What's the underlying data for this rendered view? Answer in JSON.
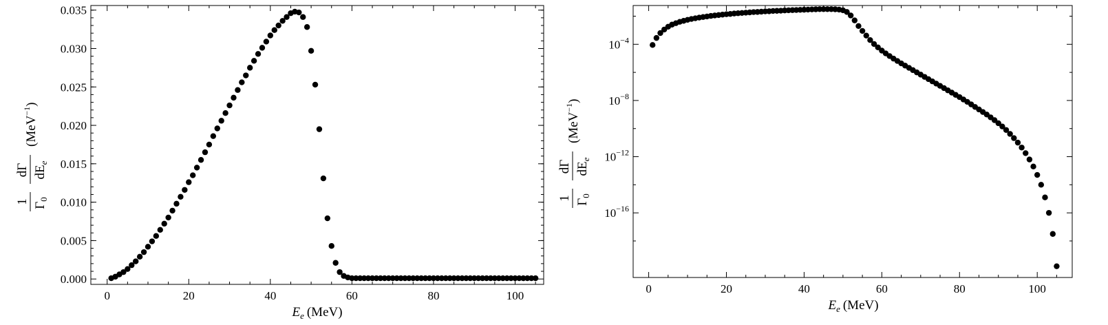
{
  "chart_data": [
    {
      "type": "scatter",
      "panel": "left",
      "xscale": "linear",
      "yscale": "linear",
      "xlim": [
        -4,
        107
      ],
      "ylim": [
        -0.0007,
        0.0356
      ],
      "xticks": [
        0,
        20,
        40,
        60,
        80,
        100
      ],
      "xtick_labels": [
        "0",
        "20",
        "40",
        "60",
        "80",
        "100"
      ],
      "yticks": [
        0,
        0.005,
        0.01,
        0.015,
        0.02,
        0.025,
        0.03,
        0.035
      ],
      "ytick_labels": [
        "0.000",
        "0.005",
        "0.010",
        "0.015",
        "0.020",
        "0.025",
        "0.030",
        "0.035"
      ],
      "xlabel": {
        "var": "E",
        "sub": "e",
        "unit": "(MeV)"
      },
      "ylabel": {
        "frac1_num": "1",
        "frac1_den_sym": "Γ",
        "frac1_den_sub": "0",
        "frac2_num": "dΓ",
        "frac2_den": "dE",
        "frac2_den_sub": "e",
        "unit": "(MeV",
        "unit_exp": "−1",
        "unit_close": ")"
      },
      "series": [
        {
          "x": [
            1,
            2,
            3,
            4,
            5,
            6,
            7,
            8,
            9,
            10,
            11,
            12,
            13,
            14,
            15,
            16,
            17,
            18,
            19,
            20,
            21,
            22,
            23,
            24,
            25,
            26,
            27,
            28,
            29,
            30,
            31,
            32,
            33,
            34,
            35,
            36,
            37,
            38,
            39,
            40,
            41,
            42,
            43,
            44,
            45,
            46,
            47,
            48,
            49,
            50,
            51,
            52,
            53,
            54,
            55,
            56,
            57,
            58,
            59,
            60,
            61,
            62,
            63,
            64,
            65,
            66,
            67,
            68,
            69,
            70,
            71,
            72,
            73,
            74,
            75,
            76,
            77,
            78,
            79,
            80,
            81,
            82,
            83,
            84,
            85,
            86,
            87,
            88,
            89,
            90,
            91,
            92,
            93,
            94,
            95,
            96,
            97,
            98,
            99,
            100,
            101,
            102,
            103,
            104,
            105
          ],
          "y": [
            0.0001,
            0.0003,
            0.0006,
            0.0009,
            0.0013,
            0.0018,
            0.0023,
            0.0029,
            0.0035,
            0.0042,
            0.0049,
            0.0056,
            0.0064,
            0.0072,
            0.008,
            0.0089,
            0.0098,
            0.0107,
            0.0116,
            0.0126,
            0.0135,
            0.0145,
            0.0155,
            0.0165,
            0.0175,
            0.0186,
            0.0196,
            0.0206,
            0.0216,
            0.0226,
            0.0236,
            0.0246,
            0.0256,
            0.0265,
            0.0275,
            0.0284,
            0.0293,
            0.0301,
            0.0309,
            0.0317,
            0.0324,
            0.033,
            0.0336,
            0.0341,
            0.0346,
            0.0348,
            0.0347,
            0.0341,
            0.0328,
            0.0297,
            0.0253,
            0.0195,
            0.0131,
            0.0079,
            0.0043,
            0.0021,
            0.0009,
            0.0004,
            0.0002,
            0.0001,
            0.0001,
            0.0001,
            0.0001,
            0.0001,
            0.0001,
            0.0001,
            0.0001,
            0.0001,
            0.0001,
            0.0001,
            0.0001,
            0.0001,
            0.0001,
            0.0001,
            0.0001,
            0.0001,
            0.0001,
            0.0001,
            0.0001,
            0.0001,
            0.0001,
            0.0001,
            0.0001,
            0.0001,
            0.0001,
            0.0001,
            0.0001,
            0.0001,
            0.0001,
            0.0001,
            0.0001,
            0.0001,
            0.0001,
            0.0001,
            0.0001,
            0.0001,
            0.0001,
            0.0001,
            0.0001,
            0.0001,
            0.0001,
            0.0001,
            0.0001,
            0.0001,
            0.0001
          ]
        }
      ]
    },
    {
      "type": "scatter",
      "panel": "right",
      "xscale": "linear",
      "yscale": "log",
      "xlim": [
        -4,
        109
      ],
      "ylim": [
        -20.6,
        -1.24
      ],
      "xticks": [
        0,
        20,
        40,
        60,
        80,
        100
      ],
      "xtick_labels": [
        "0",
        "20",
        "40",
        "60",
        "80",
        "100"
      ],
      "yticks_major": [
        -4,
        -8,
        -12,
        -16
      ],
      "ytick_labels": [
        {
          "base": "10",
          "exp": "−4"
        },
        {
          "base": "10",
          "exp": "−8"
        },
        {
          "base": "10",
          "exp": "−12"
        },
        {
          "base": "10",
          "exp": "−16"
        }
      ],
      "xlabel": {
        "var": "E",
        "sub": "e",
        "unit": "(MeV)"
      },
      "ylabel": {
        "frac1_num": "1",
        "frac1_den_sym": "Γ",
        "frac1_den_sub": "0",
        "frac2_num": "dΓ",
        "frac2_den": "dE",
        "frac2_den_sub": "e",
        "unit": "(MeV",
        "unit_exp": "−1",
        "unit_close": ")"
      },
      "series": [
        {
          "x": [
            1,
            2,
            3,
            4,
            5,
            6,
            7,
            8,
            9,
            10,
            11,
            12,
            13,
            14,
            15,
            16,
            17,
            18,
            19,
            20,
            21,
            22,
            23,
            24,
            25,
            26,
            27,
            28,
            29,
            30,
            31,
            32,
            33,
            34,
            35,
            36,
            37,
            38,
            39,
            40,
            41,
            42,
            43,
            44,
            45,
            46,
            47,
            48,
            49,
            50,
            51,
            52,
            53,
            54,
            55,
            56,
            57,
            58,
            59,
            60,
            61,
            62,
            63,
            64,
            65,
            66,
            67,
            68,
            69,
            70,
            71,
            72,
            73,
            74,
            75,
            76,
            77,
            78,
            79,
            80,
            81,
            82,
            83,
            84,
            85,
            86,
            87,
            88,
            89,
            90,
            91,
            92,
            93,
            94,
            95,
            96,
            97,
            98,
            99,
            100,
            101,
            102,
            103,
            104,
            105
          ],
          "y_log10": [
            -4.05,
            -3.55,
            -3.2,
            -2.95,
            -2.75,
            -2.6,
            -2.5,
            -2.4,
            -2.33,
            -2.26,
            -2.2,
            -2.15,
            -2.1,
            -2.06,
            -2.02,
            -1.98,
            -1.95,
            -1.92,
            -1.89,
            -1.86,
            -1.84,
            -1.81,
            -1.79,
            -1.77,
            -1.75,
            -1.73,
            -1.71,
            -1.7,
            -1.68,
            -1.66,
            -1.65,
            -1.63,
            -1.62,
            -1.61,
            -1.59,
            -1.58,
            -1.57,
            -1.56,
            -1.55,
            -1.54,
            -1.53,
            -1.52,
            -1.51,
            -1.5,
            -1.5,
            -1.5,
            -1.5,
            -1.51,
            -1.53,
            -1.58,
            -1.7,
            -1.95,
            -2.3,
            -2.7,
            -3.05,
            -3.38,
            -3.7,
            -3.98,
            -4.22,
            -4.45,
            -4.65,
            -4.84,
            -5.02,
            -5.19,
            -5.36,
            -5.52,
            -5.68,
            -5.84,
            -6.0,
            -6.16,
            -6.32,
            -6.48,
            -6.64,
            -6.8,
            -6.96,
            -7.12,
            -7.28,
            -7.44,
            -7.6,
            -7.76,
            -7.93,
            -8.1,
            -8.28,
            -8.46,
            -8.64,
            -8.82,
            -9.0,
            -9.2,
            -9.4,
            -9.62,
            -9.85,
            -10.1,
            -10.38,
            -10.68,
            -11.0,
            -11.35,
            -11.75,
            -12.2,
            -12.7,
            -13.3,
            -14.0,
            -14.9,
            -16.0,
            -17.5,
            -19.8
          ]
        }
      ]
    }
  ]
}
